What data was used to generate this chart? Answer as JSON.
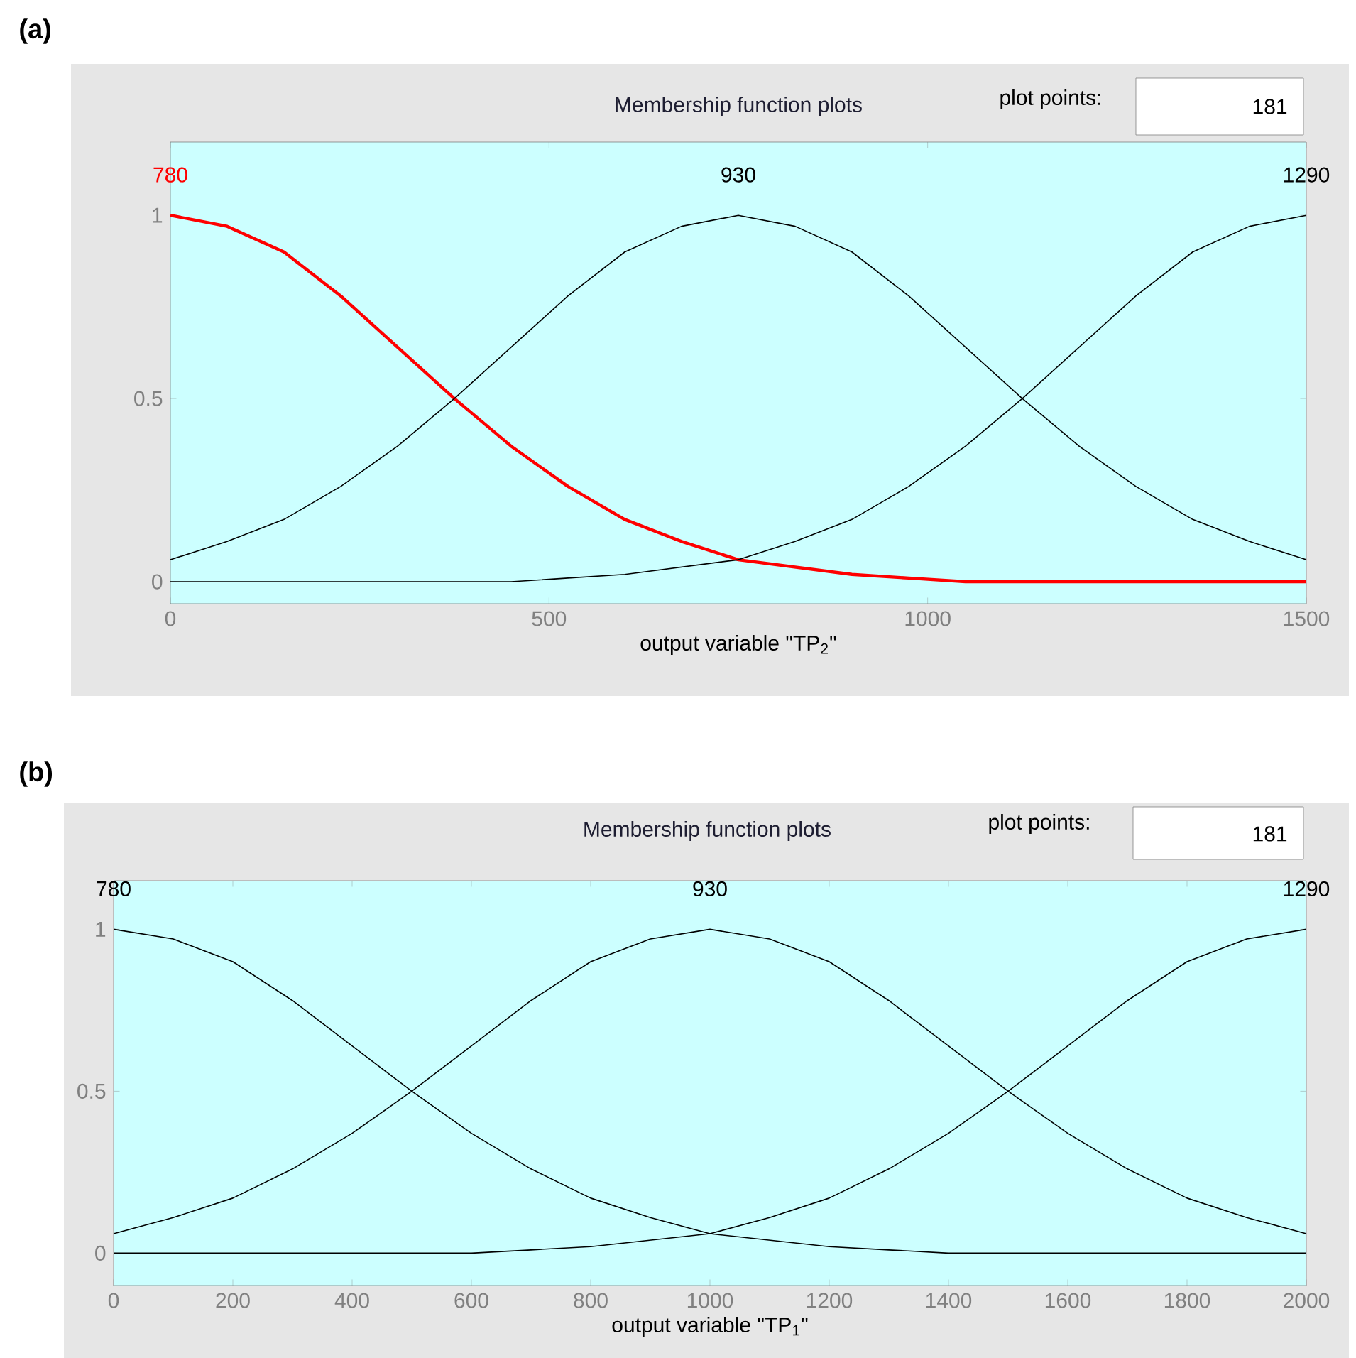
{
  "chart_data": [
    {
      "type": "line",
      "title": "(a)",
      "annotations": [
        "Membership function plots",
        "plot points:",
        "181"
      ],
      "xlabel": "output variable \"TP$_{2}$\"",
      "x": [
        0,
        75,
        150,
        225,
        300,
        375,
        450,
        525,
        600,
        675,
        750,
        825,
        900,
        975,
        1050,
        1125,
        1200,
        1275,
        1350,
        1425,
        1500
      ],
      "series": [
        {
          "name": "780",
          "color": "#ff0000",
          "values": [
            1,
            0.97,
            0.9,
            0.78,
            0.64,
            0.5,
            0.37,
            0.26,
            0.17,
            0.11,
            0.06,
            0.04,
            0.02,
            0.01,
            0,
            0,
            0,
            0,
            0,
            0,
            0
          ]
        },
        {
          "name": "930",
          "color": "#000000",
          "values": [
            0.06,
            0.11,
            0.17,
            0.26,
            0.37,
            0.5,
            0.64,
            0.78,
            0.9,
            0.97,
            1,
            0.97,
            0.9,
            0.78,
            0.64,
            0.5,
            0.37,
            0.26,
            0.17,
            0.11,
            0.06
          ]
        },
        {
          "name": "1290",
          "color": "#000000",
          "values": [
            0,
            0,
            0,
            0,
            0,
            0,
            0,
            0.01,
            0.02,
            0.04,
            0.06,
            0.11,
            0.17,
            0.26,
            0.37,
            0.5,
            0.64,
            0.78,
            0.9,
            0.97,
            1
          ]
        }
      ],
      "xlim": [
        0,
        1500
      ],
      "ylim": [
        -0.06,
        1.2
      ],
      "xticks": [
        0,
        500,
        1000,
        1500
      ],
      "yticks": [
        0,
        0.5,
        1
      ],
      "grid": false
    },
    {
      "type": "line",
      "title": "(b)",
      "annotations": [
        "Membership function plots",
        "plot points:",
        "181"
      ],
      "xlabel": "output variable \"TP$_{1}$\"",
      "x": [
        0,
        100,
        200,
        300,
        400,
        500,
        600,
        700,
        800,
        900,
        1000,
        1100,
        1200,
        1300,
        1400,
        1500,
        1600,
        1700,
        1800,
        1900,
        2000
      ],
      "series": [
        {
          "name": "780",
          "color": "#000000",
          "values": [
            1,
            0.97,
            0.9,
            0.78,
            0.64,
            0.5,
            0.37,
            0.26,
            0.17,
            0.11,
            0.06,
            0.04,
            0.02,
            0.01,
            0,
            0,
            0,
            0,
            0,
            0,
            0
          ]
        },
        {
          "name": "930",
          "color": "#000000",
          "values": [
            0.06,
            0.11,
            0.17,
            0.26,
            0.37,
            0.5,
            0.64,
            0.78,
            0.9,
            0.97,
            1,
            0.97,
            0.9,
            0.78,
            0.64,
            0.5,
            0.37,
            0.26,
            0.17,
            0.11,
            0.06
          ]
        },
        {
          "name": "1290",
          "color": "#000000",
          "values": [
            0,
            0,
            0,
            0,
            0,
            0,
            0,
            0.01,
            0.02,
            0.04,
            0.06,
            0.11,
            0.17,
            0.26,
            0.37,
            0.5,
            0.64,
            0.78,
            0.9,
            0.97,
            1
          ]
        }
      ],
      "xlim": [
        0,
        2000
      ],
      "ylim": [
        -0.1,
        1.15
      ],
      "xticks": [
        0,
        200,
        400,
        600,
        800,
        1000,
        1200,
        1400,
        1600,
        1800,
        2000
      ],
      "yticks": [
        0,
        0.5,
        1
      ],
      "grid": false
    }
  ]
}
